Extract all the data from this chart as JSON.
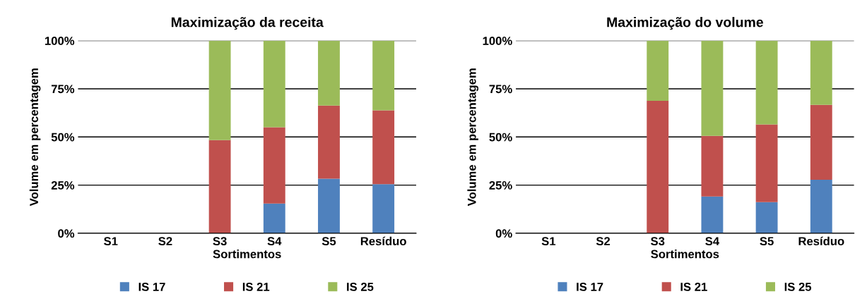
{
  "chart_data": [
    {
      "type": "bar",
      "title": "Maximização da receita",
      "xlabel": "Sortimentos",
      "ylabel": "Volume em percentagem",
      "stacked": true,
      "categories": [
        "S1",
        "S2",
        "S3",
        "S4",
        "S5",
        "Resíduo"
      ],
      "series": [
        {
          "name": "IS 17",
          "color": "#4f81bd",
          "values": [
            0,
            0,
            0,
            15.4,
            28.3,
            25.5
          ]
        },
        {
          "name": "IS 21",
          "color": "#c0504d",
          "values": [
            0,
            0,
            48.4,
            39.6,
            38.0,
            38.3
          ]
        },
        {
          "name": "IS 25",
          "color": "#9bbb59",
          "values": [
            0,
            0,
            51.6,
            45.0,
            33.7,
            36.2
          ]
        }
      ],
      "ylim": [
        0,
        100
      ],
      "yticks": [
        {
          "value": 0,
          "label": "0%"
        },
        {
          "value": 25,
          "label": "25%"
        },
        {
          "value": 50,
          "label": "50%"
        },
        {
          "value": 75,
          "label": "75%"
        },
        {
          "value": 100,
          "label": "100%"
        }
      ],
      "grid": "y",
      "legend": "bottom"
    },
    {
      "type": "bar",
      "title": "Maximização do volume",
      "xlabel": "Sortimentos",
      "ylabel": "Volume em percentagem",
      "stacked": true,
      "categories": [
        "S1",
        "S2",
        "S3",
        "S4",
        "S5",
        "Resíduo"
      ],
      "series": [
        {
          "name": "IS 17",
          "color": "#4f81bd",
          "values": [
            0,
            0,
            0,
            19.1,
            16.2,
            27.8
          ]
        },
        {
          "name": "IS 21",
          "color": "#c0504d",
          "values": [
            0,
            0,
            68.8,
            31.5,
            40.3,
            38.9
          ]
        },
        {
          "name": "IS 25",
          "color": "#9bbb59",
          "values": [
            0,
            0,
            31.2,
            49.4,
            43.5,
            33.3
          ]
        }
      ],
      "ylim": [
        0,
        100
      ],
      "yticks": [
        {
          "value": 0,
          "label": "0%"
        },
        {
          "value": 25,
          "label": "25%"
        },
        {
          "value": 50,
          "label": "50%"
        },
        {
          "value": 75,
          "label": "75%"
        },
        {
          "value": 100,
          "label": "100%"
        }
      ],
      "grid": "y",
      "legend": "bottom"
    }
  ]
}
